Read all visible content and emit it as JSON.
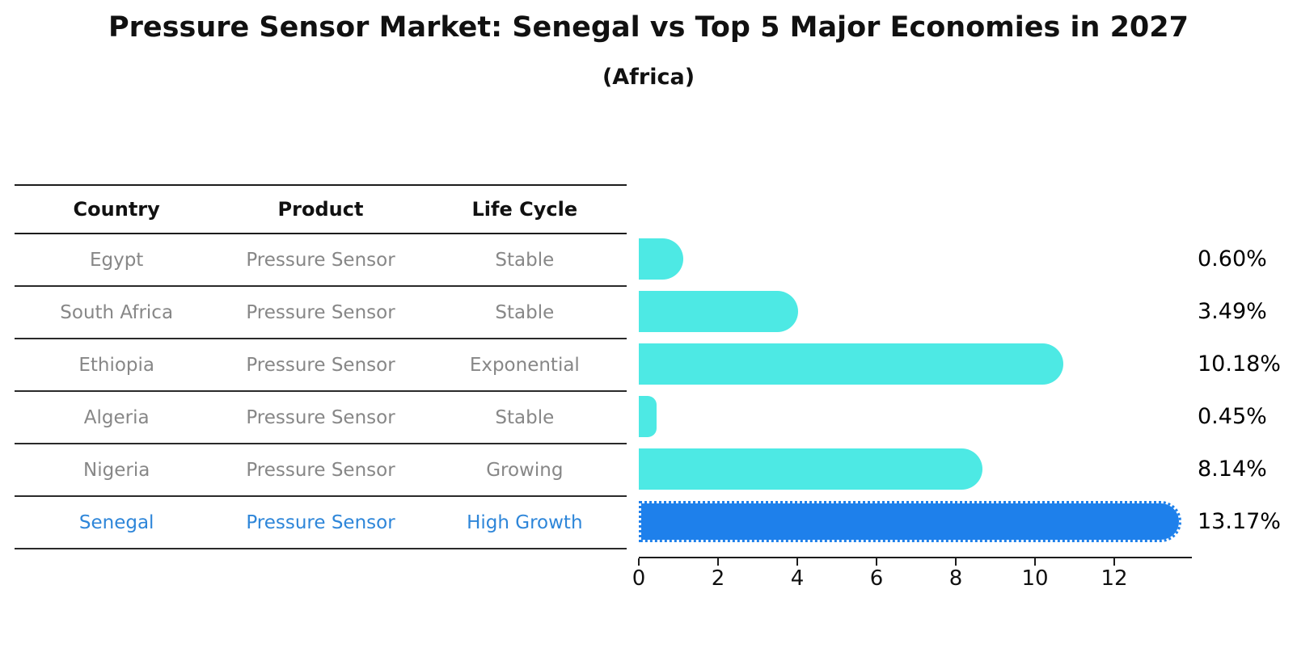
{
  "title": "Pressure Sensor Market: Senegal vs Top 5 Major Economies in 2027",
  "subtitle": "(Africa)",
  "table": {
    "headers": [
      "Country",
      "Product",
      "Life Cycle"
    ],
    "rows": [
      {
        "country": "Egypt",
        "product": "Pressure Sensor",
        "life_cycle": "Stable",
        "highlight": false
      },
      {
        "country": "South Africa",
        "product": "Pressure Sensor",
        "life_cycle": "Stable",
        "highlight": false
      },
      {
        "country": "Ethiopia",
        "product": "Pressure Sensor",
        "life_cycle": "Exponential",
        "highlight": false
      },
      {
        "country": "Algeria",
        "product": "Pressure Sensor",
        "life_cycle": "Stable",
        "highlight": false
      },
      {
        "country": "Nigeria",
        "product": "Pressure Sensor",
        "life_cycle": "Growing",
        "highlight": false
      },
      {
        "country": "Senegal",
        "product": "Pressure Sensor",
        "life_cycle": "High Growth",
        "highlight": true
      }
    ]
  },
  "chart_data": {
    "type": "bar",
    "orientation": "horizontal",
    "categories": [
      "Egypt",
      "South Africa",
      "Ethiopia",
      "Algeria",
      "Nigeria",
      "Senegal"
    ],
    "values": [
      0.6,
      3.49,
      10.18,
      0.45,
      8.14,
      13.17
    ],
    "value_labels": [
      "0.60%",
      "3.49%",
      "10.18%",
      "0.45%",
      "8.14%",
      "13.17%"
    ],
    "xticks": [
      "0",
      "2",
      "4",
      "6",
      "8",
      "10",
      "12"
    ],
    "xtick_values": [
      0,
      2,
      4,
      6,
      8,
      10,
      12
    ],
    "xlim": [
      0,
      13.9
    ],
    "grid": false,
    "legend": "none",
    "highlight_index": 5,
    "colors": {
      "bar": "#4DE9E4",
      "highlight_bar": "#1E80EB",
      "highlight_text": "#2E86D9",
      "axis": "#1c1c1c",
      "table_text": "#878787"
    }
  }
}
